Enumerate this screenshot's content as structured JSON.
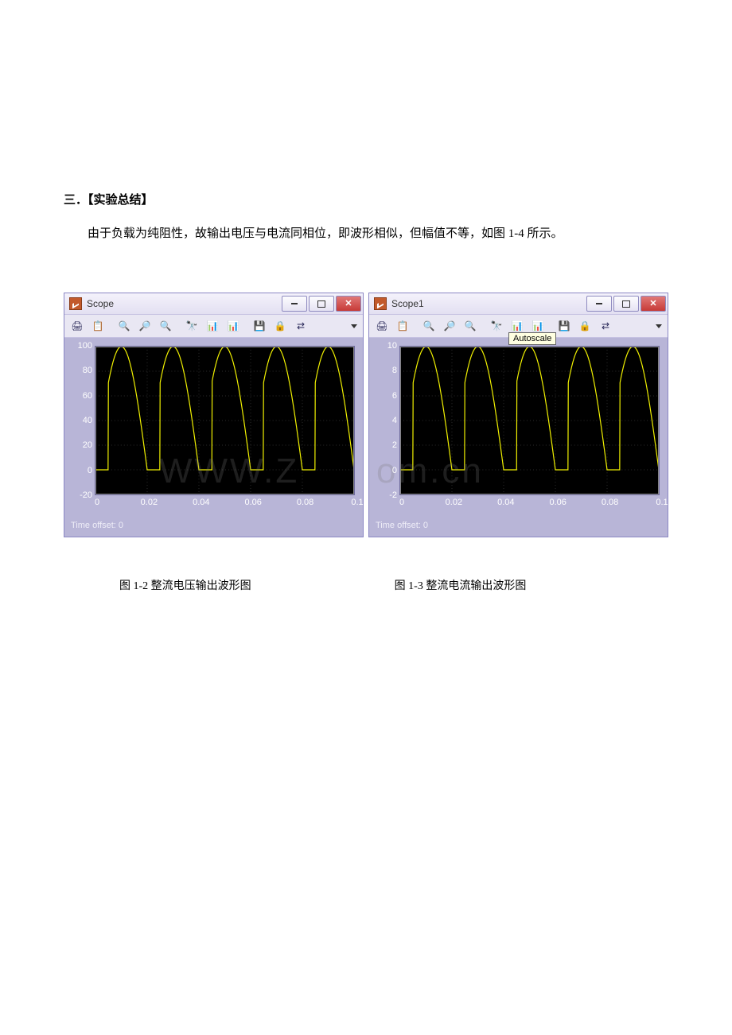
{
  "doc": {
    "heading": "三．【实验总结】",
    "body": "由于负载为纯阻性，故输出电压与电流同相位，即波形相似，但幅值不等，如图 1-4 所示。",
    "watermark_left": "WWW.Z",
    "watermark_right": "om.cn",
    "caption_left": "图 1-2   整流电压输出波形图",
    "caption_right": "图 1-3   整流电流输出波形图"
  },
  "scope_left": {
    "title": "Scope",
    "time_offset_label": "Time offset:   0",
    "chart": {
      "type": "line",
      "trace_color": "#f2f200",
      "background_color": "#000000",
      "grid_color": "#5a5a5a",
      "xlim": [
        0,
        0.1
      ],
      "xticks": [
        0,
        0.02,
        0.04,
        0.06,
        0.08,
        0.1
      ],
      "xlabels": [
        "0",
        "0.02",
        "0.04",
        "0.06",
        "0.08",
        "0.1"
      ],
      "ylim": [
        -20,
        100
      ],
      "yticks": [
        -20,
        0,
        20,
        40,
        60,
        80,
        100
      ],
      "ylabels": [
        "-20",
        "0",
        "20",
        "40",
        "60",
        "80",
        "100"
      ],
      "amplitude": 100,
      "baseline": 0,
      "period": 0.02,
      "conduction_start_phase": 0.25,
      "conduction_end_phase": 1.0
    }
  },
  "scope_right": {
    "title": "Scope1",
    "time_offset_label": "Time offset:   0",
    "tooltip": "Autoscale",
    "chart": {
      "type": "line",
      "trace_color": "#f2f200",
      "background_color": "#000000",
      "grid_color": "#5a5a5a",
      "xlim": [
        0,
        0.1
      ],
      "xticks": [
        0,
        0.02,
        0.04,
        0.06,
        0.08,
        0.1
      ],
      "xlabels": [
        "0",
        "0.02",
        "0.04",
        "0.06",
        "0.08",
        "0.1"
      ],
      "ylim": [
        -2,
        10
      ],
      "yticks": [
        -2,
        0,
        2,
        4,
        6,
        8,
        10
      ],
      "ylabels": [
        "-2",
        "0",
        "2",
        "4",
        "6",
        "8",
        "10"
      ],
      "amplitude": 10,
      "baseline": 0,
      "period": 0.02,
      "conduction_start_phase": 0.25,
      "conduction_end_phase": 1.0
    }
  },
  "toolbar_icons": [
    "🖨",
    "📋",
    "🔍",
    "🔎",
    "🔍",
    "🔭",
    "📊",
    "📊",
    "💾",
    "🔒",
    "⇄"
  ]
}
